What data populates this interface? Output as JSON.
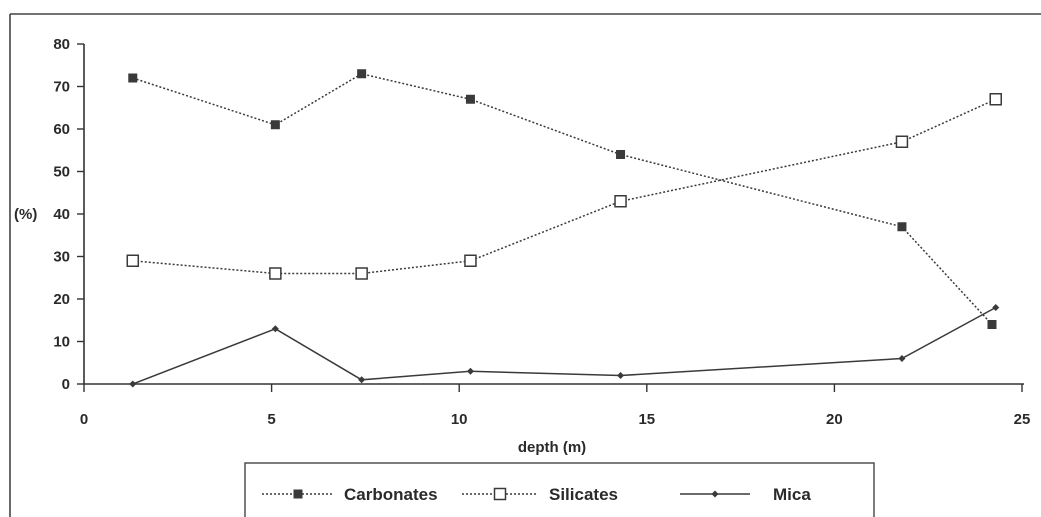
{
  "chart_data": {
    "type": "line",
    "title": "",
    "xlabel": "depth (m)",
    "ylabel": "(%)",
    "xlim": [
      0,
      25
    ],
    "ylim": [
      0,
      80
    ],
    "x_ticks": [
      0,
      5,
      10,
      15,
      20,
      25
    ],
    "y_ticks": [
      0,
      10,
      20,
      30,
      40,
      50,
      60,
      70,
      80
    ],
    "grid": false,
    "legend_position": "bottom",
    "series": [
      {
        "name": "Carbonates",
        "marker": "filled-square",
        "line_style": "dotted",
        "color": "#3a3a3a",
        "points": [
          {
            "x": 1.3,
            "y": 72
          },
          {
            "x": 5.1,
            "y": 61
          },
          {
            "x": 7.4,
            "y": 73
          },
          {
            "x": 10.3,
            "y": 67
          },
          {
            "x": 14.3,
            "y": 54
          },
          {
            "x": 21.8,
            "y": 37
          },
          {
            "x": 24.2,
            "y": 14
          }
        ]
      },
      {
        "name": "Silicates",
        "marker": "open-square",
        "line_style": "dotted",
        "color": "#3a3a3a",
        "points": [
          {
            "x": 1.3,
            "y": 29
          },
          {
            "x": 5.1,
            "y": 26
          },
          {
            "x": 7.4,
            "y": 26
          },
          {
            "x": 10.3,
            "y": 29
          },
          {
            "x": 14.3,
            "y": 43
          },
          {
            "x": 21.8,
            "y": 57
          },
          {
            "x": 24.3,
            "y": 67
          }
        ]
      },
      {
        "name": "Mica",
        "marker": "filled-diamond",
        "line_style": "solid",
        "color": "#3a3a3a",
        "points": [
          {
            "x": 1.3,
            "y": 0
          },
          {
            "x": 5.1,
            "y": 13
          },
          {
            "x": 7.4,
            "y": 1
          },
          {
            "x": 10.3,
            "y": 3
          },
          {
            "x": 14.3,
            "y": 2
          },
          {
            "x": 21.8,
            "y": 6
          },
          {
            "x": 24.3,
            "y": 18
          }
        ]
      }
    ]
  }
}
